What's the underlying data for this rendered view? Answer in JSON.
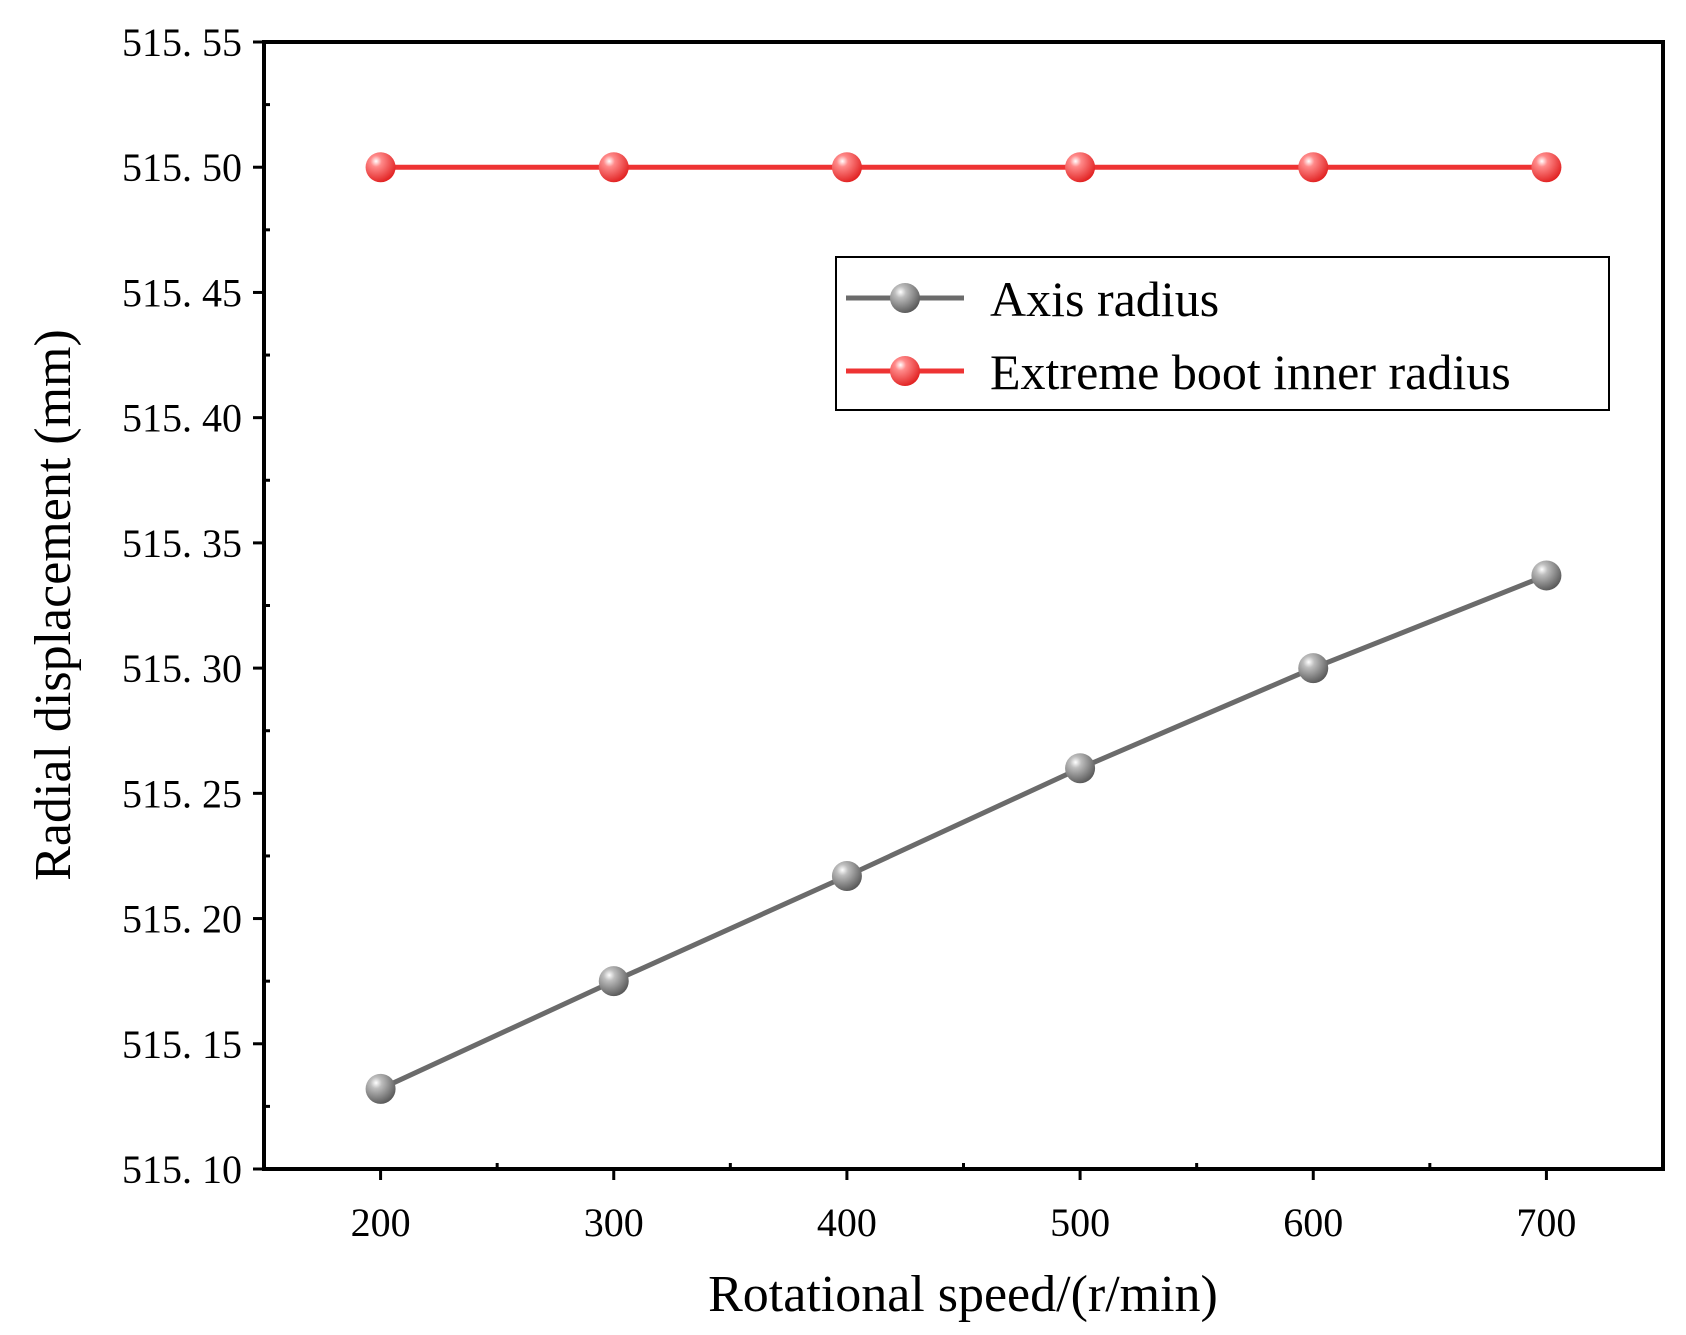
{
  "chart_data": {
    "type": "line",
    "title": "",
    "xlabel": "Rotational speed/(r/min)",
    "ylabel": "Radial displacement (mm)",
    "x": [
      200,
      300,
      400,
      500,
      600,
      700
    ],
    "xlim": [
      150,
      750
    ],
    "ylim": [
      515.1,
      515.55
    ],
    "x_ticks": [
      200,
      300,
      400,
      500,
      600,
      700
    ],
    "x_tick_labels": [
      "200",
      "300",
      "400",
      "500",
      "600",
      "700"
    ],
    "y_ticks": [
      515.1,
      515.15,
      515.2,
      515.25,
      515.3,
      515.35,
      515.4,
      515.45,
      515.5,
      515.55
    ],
    "y_tick_labels": [
      "515. 10",
      "515. 15",
      "515. 20",
      "515. 25",
      "515. 30",
      "515. 35",
      "515. 40",
      "515. 45",
      "515. 50",
      "515. 55"
    ],
    "grid": false,
    "legend_position": "top-right",
    "series": [
      {
        "name": "Axis radius",
        "color": "#6b6b6b",
        "values": [
          515.132,
          515.175,
          515.217,
          515.26,
          515.3,
          515.337
        ]
      },
      {
        "name": "Extreme boot inner radius",
        "color": "#ee3333",
        "values": [
          515.5,
          515.5,
          515.5,
          515.5,
          515.5,
          515.5
        ]
      }
    ]
  }
}
